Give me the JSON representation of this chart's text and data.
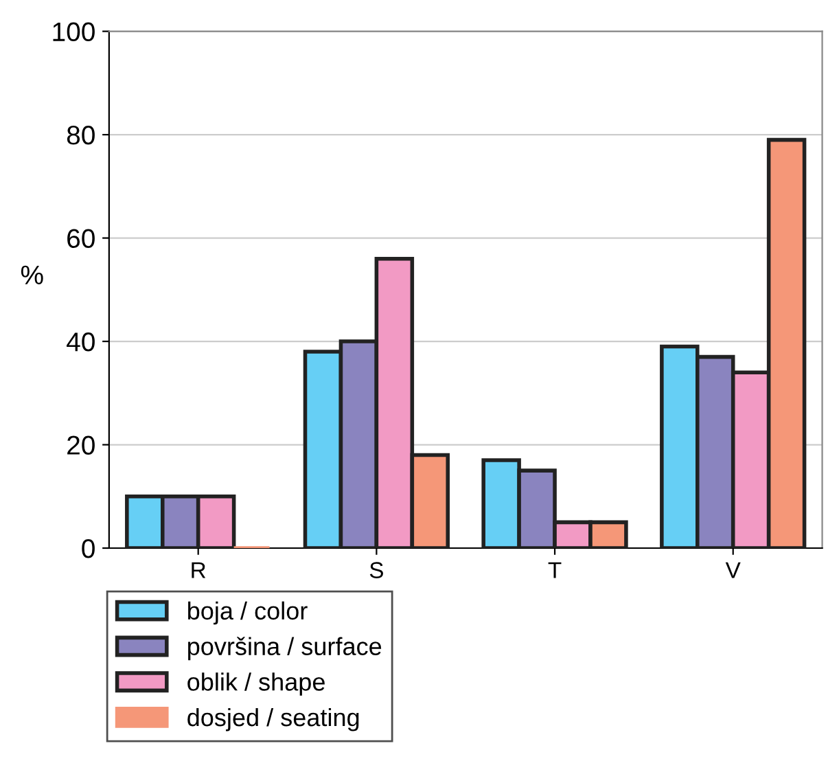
{
  "chart_data": {
    "type": "bar",
    "ylabel": "%",
    "categories": [
      "R",
      "S",
      "T",
      "V"
    ],
    "series": [
      {
        "name": "boja / color",
        "color": "#66cff5",
        "values": [
          10,
          38,
          17,
          39
        ]
      },
      {
        "name": "površina / surface",
        "color": "#8a84bf",
        "values": [
          10,
          40,
          15,
          37
        ]
      },
      {
        "name": "oblik / shape",
        "color": "#f29ac4",
        "values": [
          10,
          56,
          5,
          34
        ]
      },
      {
        "name": "dosjed / seating",
        "color": "#f59778",
        "values": [
          0,
          18,
          5,
          79
        ]
      }
    ],
    "ylim": [
      0,
      100
    ],
    "yticks": [
      0,
      20,
      40,
      60,
      80,
      100
    ],
    "grid": "y",
    "legend": "bottom left"
  }
}
